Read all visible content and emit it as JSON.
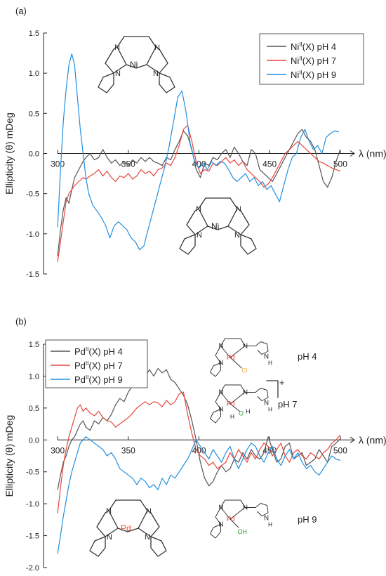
{
  "chart_data": [
    {
      "panel_label": "(a)",
      "type": "line",
      "xlabel": "λ (nm)",
      "ylabel": "Ellipticity (θ) mDeg",
      "xlim": [
        290,
        510
      ],
      "ylim": [
        -1.5,
        1.5
      ],
      "x_ticks": [
        300,
        350,
        400,
        450,
        500
      ],
      "y_ticks": [
        -1.5,
        -1.0,
        -0.5,
        0.0,
        0.5,
        1.0,
        1.5
      ],
      "x_tick_labels": [
        "300",
        "350",
        "400",
        "450",
        "500"
      ],
      "y_tick_labels": [
        "-1.5",
        "-1.0",
        "-0.5",
        "0.0",
        "0.5",
        "1.0",
        "1.5"
      ],
      "legend_position": "top-right",
      "series": [
        {
          "name": "Ni(X) pH 4",
          "name_parts": [
            "Ni",
            "II",
            "(X) pH 4"
          ],
          "color": "#555555",
          "x": [
            300,
            302,
            304,
            306,
            308,
            310,
            312,
            315,
            318,
            320,
            323,
            326,
            329,
            332,
            335,
            338,
            341,
            344,
            347,
            350,
            353,
            356,
            359,
            362,
            365,
            368,
            371,
            374,
            377,
            380,
            383,
            386,
            389,
            392,
            395,
            398,
            401,
            404,
            407,
            410,
            413,
            416,
            419,
            422,
            425,
            428,
            431,
            434,
            437,
            440,
            443,
            446,
            449,
            452,
            455,
            458,
            461,
            464,
            467,
            470,
            473,
            476,
            479,
            482,
            485,
            488,
            491,
            494,
            497,
            500
          ],
          "y": [
            -1.28,
            -0.95,
            -0.7,
            -0.55,
            -0.62,
            -0.45,
            -0.3,
            -0.2,
            -0.1,
            -0.05,
            0.0,
            -0.08,
            -0.05,
            0.05,
            -0.05,
            -0.12,
            -0.08,
            -0.15,
            -0.1,
            -0.15,
            -0.08,
            -0.12,
            -0.05,
            -0.1,
            -0.05,
            -0.1,
            -0.12,
            -0.15,
            -0.05,
            -0.08,
            0.05,
            0.15,
            0.28,
            0.22,
            0.05,
            -0.2,
            -0.3,
            -0.12,
            -0.15,
            -0.05,
            -0.08,
            0.0,
            0.05,
            -0.05,
            0.08,
            0.0,
            -0.1,
            -0.15,
            0.05,
            0.0,
            -0.2,
            -0.25,
            -0.3,
            -0.35,
            -0.25,
            -0.15,
            -0.05,
            0.05,
            0.15,
            0.25,
            0.3,
            0.2,
            0.15,
            0.05,
            -0.15,
            -0.35,
            -0.42,
            -0.3,
            -0.1,
            0.05
          ]
        },
        {
          "name": "Ni(X) pH 7",
          "name_parts": [
            "Ni",
            "II",
            "(X) pH 7"
          ],
          "color": "#e8453c",
          "x": [
            300,
            302,
            304,
            306,
            308,
            310,
            312,
            315,
            318,
            320,
            323,
            326,
            329,
            332,
            335,
            338,
            341,
            344,
            347,
            350,
            353,
            356,
            359,
            362,
            365,
            368,
            371,
            374,
            377,
            380,
            383,
            386,
            389,
            392,
            395,
            398,
            401,
            404,
            407,
            410,
            413,
            416,
            419,
            422,
            425,
            428,
            431,
            434,
            437,
            440,
            443,
            446,
            449,
            452,
            455,
            458,
            461,
            464,
            467,
            470,
            473,
            476,
            479,
            482,
            485,
            488,
            491,
            494,
            497,
            500
          ],
          "y": [
            -1.35,
            -1.1,
            -0.85,
            -0.6,
            -0.5,
            -0.45,
            -0.4,
            -0.35,
            -0.3,
            -0.32,
            -0.28,
            -0.25,
            -0.2,
            -0.28,
            -0.22,
            -0.3,
            -0.35,
            -0.28,
            -0.3,
            -0.25,
            -0.32,
            -0.28,
            -0.2,
            -0.25,
            -0.22,
            -0.28,
            -0.2,
            -0.18,
            -0.12,
            -0.15,
            -0.05,
            0.1,
            0.3,
            0.35,
            0.15,
            -0.1,
            -0.25,
            -0.2,
            -0.22,
            -0.12,
            -0.15,
            -0.1,
            -0.05,
            -0.12,
            -0.08,
            -0.15,
            -0.1,
            -0.2,
            -0.25,
            -0.3,
            -0.35,
            -0.42,
            -0.38,
            -0.3,
            -0.2,
            -0.1,
            0.0,
            0.05,
            0.1,
            0.15,
            0.1,
            0.05,
            0.0,
            -0.05,
            -0.1,
            -0.12,
            -0.15,
            -0.18,
            -0.2,
            -0.22
          ]
        },
        {
          "name": "Ni(X) pH 9",
          "name_parts": [
            "Ni",
            "II",
            "(X) pH 9"
          ],
          "color": "#1f8fe0",
          "x": [
            300,
            302,
            304,
            306,
            308,
            310,
            312,
            314,
            316,
            318,
            320,
            322,
            325,
            328,
            331,
            334,
            337,
            340,
            343,
            346,
            349,
            352,
            355,
            358,
            361,
            364,
            367,
            370,
            373,
            376,
            379,
            382,
            385,
            388,
            391,
            394,
            397,
            400,
            403,
            406,
            409,
            412,
            415,
            418,
            421,
            424,
            427,
            430,
            433,
            436,
            439,
            442,
            445,
            448,
            451,
            454,
            457,
            460,
            463,
            466,
            469,
            472,
            475,
            478,
            481,
            484,
            487,
            490,
            493,
            496,
            499
          ],
          "y": [
            -0.92,
            -0.2,
            0.4,
            0.8,
            1.1,
            1.24,
            1.1,
            0.7,
            0.3,
            0.0,
            -0.3,
            -0.5,
            -0.65,
            -0.72,
            -0.8,
            -0.9,
            -1.05,
            -0.9,
            -0.85,
            -0.9,
            -0.95,
            -1.05,
            -1.1,
            -1.2,
            -1.15,
            -0.95,
            -0.75,
            -0.55,
            -0.35,
            -0.15,
            0.1,
            0.4,
            0.7,
            0.78,
            0.5,
            0.1,
            -0.1,
            -0.18,
            -0.12,
            -0.2,
            -0.1,
            -0.15,
            -0.1,
            -0.12,
            -0.2,
            -0.3,
            -0.35,
            -0.3,
            -0.25,
            -0.35,
            -0.3,
            -0.4,
            -0.35,
            -0.45,
            -0.4,
            -0.5,
            -0.6,
            -0.4,
            -0.2,
            -0.05,
            0.0,
            0.2,
            0.3,
            0.15,
            0.05,
            0.1,
            0.0,
            0.2,
            0.25,
            0.28,
            0.27
          ]
        }
      ],
      "annotations": [
        {
          "text": "N",
          "role": "atom"
        }
      ]
    },
    {
      "panel_label": "(b)",
      "type": "line",
      "xlabel": "λ (nm)",
      "ylabel": "Ellipticity (θ) mDeg",
      "xlim": [
        290,
        510
      ],
      "ylim": [
        -2.0,
        1.5
      ],
      "x_ticks": [
        300,
        350,
        400,
        450,
        500
      ],
      "y_ticks": [
        -2.0,
        -1.5,
        -1.0,
        -0.5,
        0.0,
        0.5,
        1.0,
        1.5
      ],
      "x_tick_labels": [
        "300",
        "350",
        "400",
        "450",
        "500"
      ],
      "y_tick_labels": [
        "-2.0",
        "-1.5",
        "-1.0",
        "-0.5",
        "0.0",
        "0.5",
        "1.0",
        "1.5"
      ],
      "legend_position": "top-left",
      "series": [
        {
          "name": "Pd(X) pH 4",
          "name_parts": [
            "Pd",
            "II",
            "(X) pH 4"
          ],
          "color": "#555555",
          "x": [
            300,
            302,
            304,
            306,
            308,
            310,
            312,
            314,
            316,
            318,
            320,
            323,
            326,
            329,
            332,
            335,
            338,
            341,
            344,
            347,
            350,
            353,
            356,
            359,
            362,
            365,
            368,
            371,
            374,
            377,
            380,
            383,
            386,
            389,
            392,
            395,
            398,
            401,
            404,
            407,
            410,
            413,
            416,
            419,
            422,
            425,
            428,
            431,
            434,
            437,
            440,
            443,
            446,
            449,
            452,
            455,
            458,
            461,
            464,
            467,
            470,
            473,
            476,
            479,
            482,
            485,
            488,
            491,
            494,
            497,
            500
          ],
          "y": [
            -0.78,
            -0.55,
            -0.35,
            -0.25,
            -0.1,
            0.0,
            0.05,
            0.15,
            0.25,
            0.3,
            0.2,
            0.15,
            0.3,
            0.25,
            0.35,
            0.3,
            0.4,
            0.55,
            0.65,
            0.6,
            0.75,
            0.85,
            0.95,
            0.92,
            1.0,
            1.1,
            1.0,
            1.12,
            1.05,
            1.1,
            0.95,
            0.9,
            0.8,
            0.7,
            0.55,
            0.3,
            0.0,
            -0.35,
            -0.6,
            -0.72,
            -0.65,
            -0.5,
            -0.4,
            -0.5,
            -0.45,
            -0.3,
            -0.35,
            -0.2,
            -0.3,
            -0.15,
            -0.25,
            -0.3,
            -0.2,
            0.05,
            -0.15,
            -0.35,
            -0.3,
            -0.1,
            -0.05,
            -0.3,
            -0.25,
            -0.2,
            -0.4,
            -0.35,
            -0.3,
            -0.15,
            -0.25,
            -0.35,
            -0.1,
            -0.05,
            0.02
          ]
        },
        {
          "name": "Pd(X) pH 7",
          "name_parts": [
            "Pd",
            "II",
            "(X) pH 7"
          ],
          "color": "#e8453c",
          "x": [
            300,
            302,
            304,
            306,
            308,
            310,
            312,
            314,
            316,
            318,
            320,
            323,
            326,
            329,
            332,
            335,
            338,
            341,
            344,
            347,
            350,
            353,
            356,
            359,
            362,
            365,
            368,
            371,
            374,
            377,
            380,
            383,
            386,
            389,
            392,
            395,
            398,
            401,
            404,
            407,
            410,
            413,
            416,
            419,
            422,
            425,
            428,
            431,
            434,
            437,
            440,
            443,
            446,
            449,
            452,
            455,
            458,
            461,
            464,
            467,
            470,
            473,
            476,
            479,
            482,
            485,
            488,
            491,
            494,
            497,
            500
          ],
          "y": [
            -1.15,
            -0.75,
            -0.4,
            -0.15,
            0.05,
            0.2,
            0.35,
            0.5,
            0.55,
            0.45,
            0.5,
            0.42,
            0.38,
            0.45,
            0.35,
            0.3,
            0.28,
            0.2,
            0.25,
            0.3,
            0.35,
            0.42,
            0.5,
            0.55,
            0.6,
            0.55,
            0.6,
            0.58,
            0.52,
            0.62,
            0.55,
            0.6,
            0.72,
            0.75,
            0.4,
            0.1,
            -0.15,
            -0.25,
            -0.3,
            -0.4,
            -0.35,
            -0.45,
            -0.4,
            -0.35,
            -0.2,
            -0.3,
            -0.15,
            -0.25,
            -0.35,
            -0.2,
            -0.3,
            -0.15,
            -0.05,
            -0.1,
            -0.25,
            -0.15,
            -0.05,
            -0.25,
            -0.35,
            -0.2,
            -0.15,
            -0.25,
            -0.3,
            -0.2,
            -0.25,
            -0.3,
            -0.2,
            -0.15,
            -0.05,
            0.0,
            0.08
          ]
        },
        {
          "name": "Pd(X) pH 9",
          "name_parts": [
            "Pd",
            "II",
            "(X) pH 9"
          ],
          "color": "#1f8fe0",
          "x": [
            300,
            302,
            304,
            306,
            308,
            310,
            312,
            314,
            316,
            318,
            320,
            323,
            326,
            329,
            332,
            335,
            338,
            341,
            344,
            347,
            350,
            353,
            356,
            359,
            362,
            365,
            368,
            371,
            374,
            377,
            380,
            383,
            386,
            389,
            392,
            395,
            398,
            401,
            404,
            407,
            410,
            413,
            416,
            419,
            422,
            425,
            428,
            431,
            434,
            437,
            440,
            443,
            446,
            449,
            452,
            455,
            458,
            461,
            464,
            467,
            470,
            473,
            476,
            479,
            482,
            485,
            488,
            491,
            494,
            497,
            500
          ],
          "y": [
            -1.78,
            -1.5,
            -1.2,
            -0.95,
            -0.7,
            -0.5,
            -0.35,
            -0.2,
            -0.05,
            0.0,
            0.05,
            0.0,
            -0.05,
            -0.1,
            -0.15,
            -0.25,
            -0.2,
            -0.3,
            -0.45,
            -0.5,
            -0.55,
            -0.6,
            -0.7,
            -0.6,
            -0.65,
            -0.75,
            -0.7,
            -0.78,
            -0.6,
            -0.7,
            -0.55,
            -0.6,
            -0.5,
            -0.4,
            -0.3,
            -0.15,
            0.0,
            -0.1,
            -0.2,
            -0.3,
            -0.15,
            -0.25,
            -0.35,
            -0.2,
            -0.1,
            -0.3,
            -0.45,
            -0.3,
            -0.15,
            -0.05,
            -0.1,
            -0.25,
            -0.35,
            -0.2,
            -0.1,
            -0.3,
            -0.4,
            -0.25,
            -0.15,
            -0.3,
            -0.2,
            -0.35,
            -0.45,
            -0.4,
            -0.5,
            -0.55,
            -0.45,
            -0.35,
            -0.25,
            -0.3,
            -0.32
          ]
        }
      ],
      "ph_labels": [
        "pH 4",
        "pH 7",
        "pH 9"
      ],
      "charge_label": "+",
      "ligand_labels": [
        "Cl",
        "OH",
        "OH",
        "H",
        "H"
      ]
    }
  ],
  "atoms": {
    "N": "N",
    "Ni": "Ni",
    "Pd": "Pd",
    "H": "H",
    "O": "O",
    "Cl": "Cl",
    "OH": "OH"
  }
}
